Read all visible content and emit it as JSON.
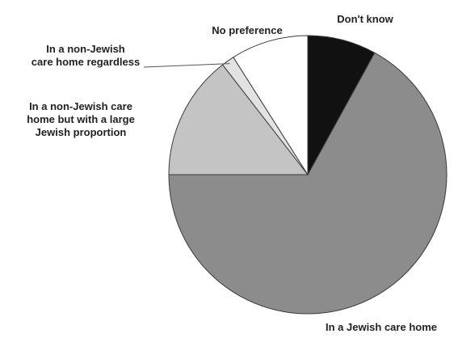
{
  "chart_data": {
    "type": "pie",
    "title": "",
    "start": "12 o'clock",
    "direction": "clockwise",
    "slices": [
      {
        "label": "Don't know",
        "lines": [
          "Don't know"
        ],
        "value": 8,
        "color": "#111111",
        "label_side": "upper-right",
        "leader": false
      },
      {
        "label": "In a Jewish care home",
        "lines": [
          "In a Jewish care home"
        ],
        "value": 67,
        "color": "#8c8c8c",
        "label_side": "bottom-right",
        "leader": false
      },
      {
        "label": "In a non-Jewish care home but with a large Jewish proportion",
        "lines": [
          "In a non-Jewish care",
          "home but with a large",
          "Jewish proportion"
        ],
        "value": 14.5,
        "color": "#c4c4c4",
        "label_side": "left",
        "leader": false
      },
      {
        "label": "In a non-Jewish care home regardless",
        "lines": [
          "In a non-Jewish",
          "care home regardless"
        ],
        "value": 1.5,
        "color": "#e2e2e2",
        "label_side": "upper-left",
        "leader": true
      },
      {
        "label": "No preference",
        "lines": [
          "No preference"
        ],
        "value": 9,
        "color": "#ffffff",
        "label_side": "top",
        "leader": false
      }
    ]
  }
}
